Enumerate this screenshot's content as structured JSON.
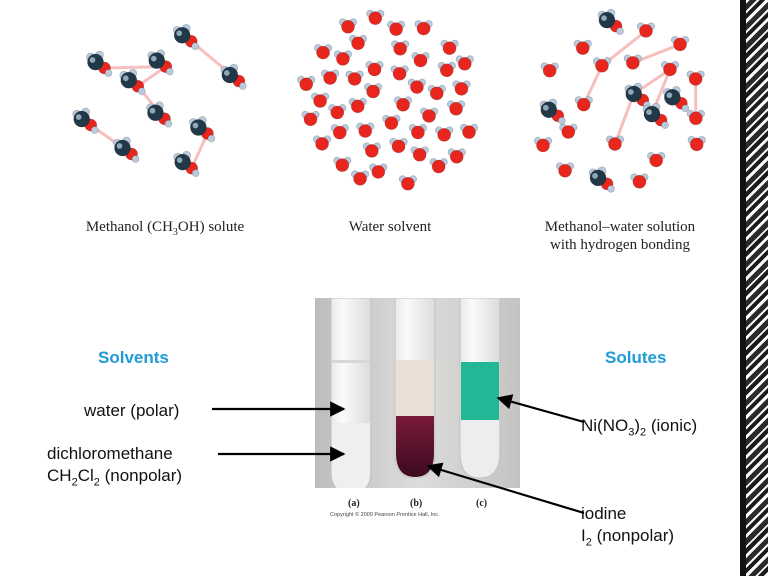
{
  "top_captions": {
    "methanol_pre": "Methanol (CH",
    "methanol_sub": "3",
    "methanol_post": "OH) solute",
    "water": "Water solvent",
    "solution_line1": "Methanol–water solution",
    "solution_line2": "with hydrogen bonding"
  },
  "headings": {
    "solvents": "Solvents",
    "solutes": "Solutes",
    "color": "#1f9bd7"
  },
  "labels": {
    "water": "water (polar)",
    "dcm_line1": "dichloromethane",
    "dcm_formula_a": "CH",
    "dcm_sub_a": "2",
    "dcm_formula_b": "Cl",
    "dcm_sub_b": "2",
    "dcm_suffix": " (nonpolar)",
    "nickel_a": "Ni(NO",
    "nickel_sub_a": "3",
    "nickel_b": ")",
    "nickel_sub_b": "2",
    "nickel_suffix": " (ionic)",
    "iodine_line1": "iodine",
    "iodine_formula": "I",
    "iodine_sub": "2",
    "iodine_suffix": " (nonpolar)"
  },
  "photo": {
    "tube_a": "(a)",
    "tube_b": "(b)",
    "tube_c": "(c)",
    "copyright": "Copyright © 2009 Pearson Prentice Hall, Inc."
  },
  "colors": {
    "oxygen": "#e8261e",
    "hydrogen": "#b9c9de",
    "carbon": "#203848",
    "hbond": "#f3a5a5",
    "iodine_layer": "#5a0f2a",
    "nickel_layer": "#1fb894"
  }
}
